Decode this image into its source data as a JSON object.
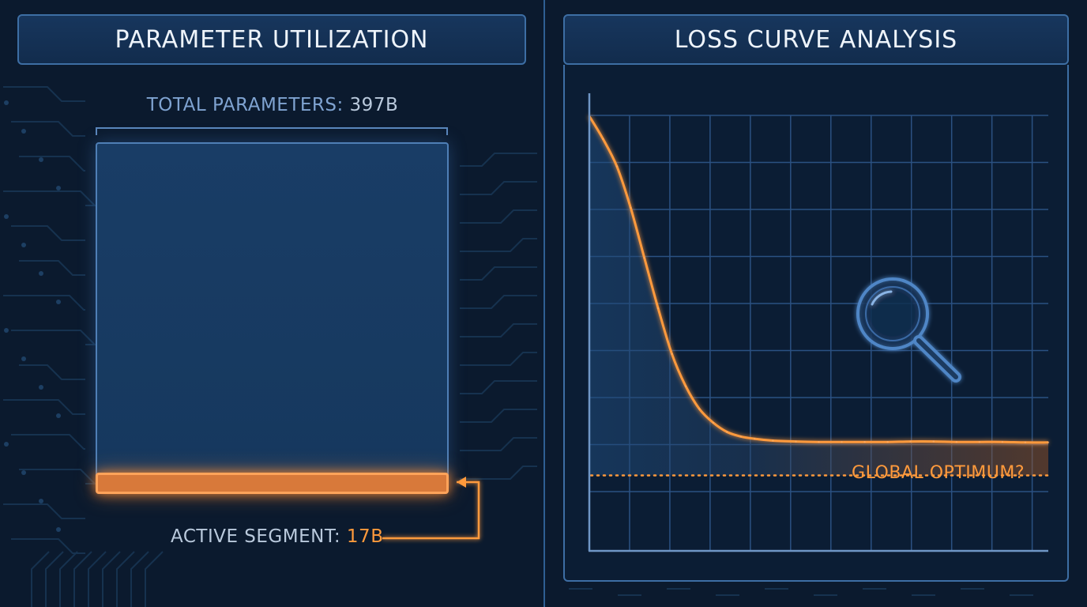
{
  "left_panel": {
    "title": "PARAMETER UTILIZATION",
    "total_label": "TOTAL PARAMETERS:",
    "total_value": "397B",
    "active_label": "ACTIVE SEGMENT:",
    "active_value": "17B",
    "total_params_b": 397,
    "active_params_b": 17
  },
  "right_panel": {
    "title": "LOSS CURVE ANALYSIS",
    "annotation": "GLOBAL OPTIMUM?",
    "icon": "magnifier-icon"
  },
  "colors": {
    "background": "#0b1a2e",
    "panel_border": "#3d6ea4",
    "accent_orange": "#ff9a3c",
    "grid": "#2b5182"
  },
  "chart_data": {
    "type": "line",
    "title": "",
    "xlabel": "",
    "ylabel": "",
    "xlim": [
      0,
      100
    ],
    "ylim": [
      0,
      100
    ],
    "grid": true,
    "series": [
      {
        "x": [
          0,
          3,
          6,
          9,
          12,
          15,
          18,
          21,
          24,
          27,
          30,
          33,
          36,
          40,
          45,
          50,
          55,
          60,
          65,
          70,
          75,
          80,
          85,
          90,
          95,
          100
        ],
        "y": [
          95,
          90,
          84,
          75,
          64,
          53,
          43,
          36,
          31,
          28,
          26,
          25,
          24.5,
          24.1,
          23.9,
          23.8,
          23.8,
          23.8,
          23.8,
          23.9,
          23.9,
          23.8,
          23.8,
          23.8,
          23.7,
          23.7
        ]
      }
    ],
    "reference_line": {
      "y": 16.5,
      "style": "dotted",
      "label": "GLOBAL OPTIMUM?"
    }
  }
}
